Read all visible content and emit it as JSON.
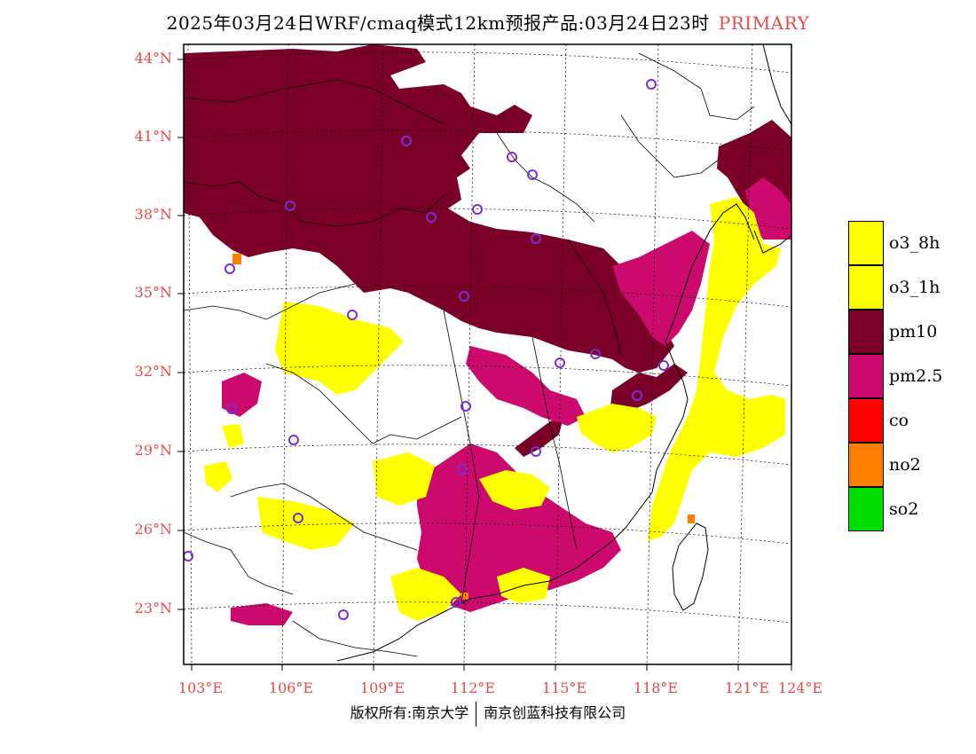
{
  "title": {
    "main": "2025年03月24日WRF/cmaq模式12km预报产品:03月24日23时",
    "tag": "PRIMARY"
  },
  "axes": {
    "lat_labels": [
      "44°N",
      "41°N",
      "38°N",
      "35°N",
      "32°N",
      "29°N",
      "26°N",
      "23°N"
    ],
    "lon_labels": [
      "103°E",
      "106°E",
      "109°E",
      "112°E",
      "115°E",
      "118°E",
      "121°E",
      "124°E"
    ]
  },
  "legend": [
    {
      "label": "o3_8h",
      "color": "#ffff00"
    },
    {
      "label": "o3_1h",
      "color": "#ffff00"
    },
    {
      "label": "pm10",
      "color": "#7b0028"
    },
    {
      "label": "pm2.5",
      "color": "#cc0a6e"
    },
    {
      "label": "co",
      "color": "#ff0000"
    },
    {
      "label": "no2",
      "color": "#ff7f00"
    },
    {
      "label": "so2",
      "color": "#00dd00"
    }
  ],
  "footer": {
    "left": "版权所有:南京大学",
    "right": "南京创蓝科技有限公司"
  },
  "colors": {
    "o3": "#ffff00",
    "pm10": "#7b0028",
    "pm25": "#cc0a6e",
    "no2": "#ff7f00",
    "station": "#7a2ed6",
    "accent": "#e84a4a"
  }
}
